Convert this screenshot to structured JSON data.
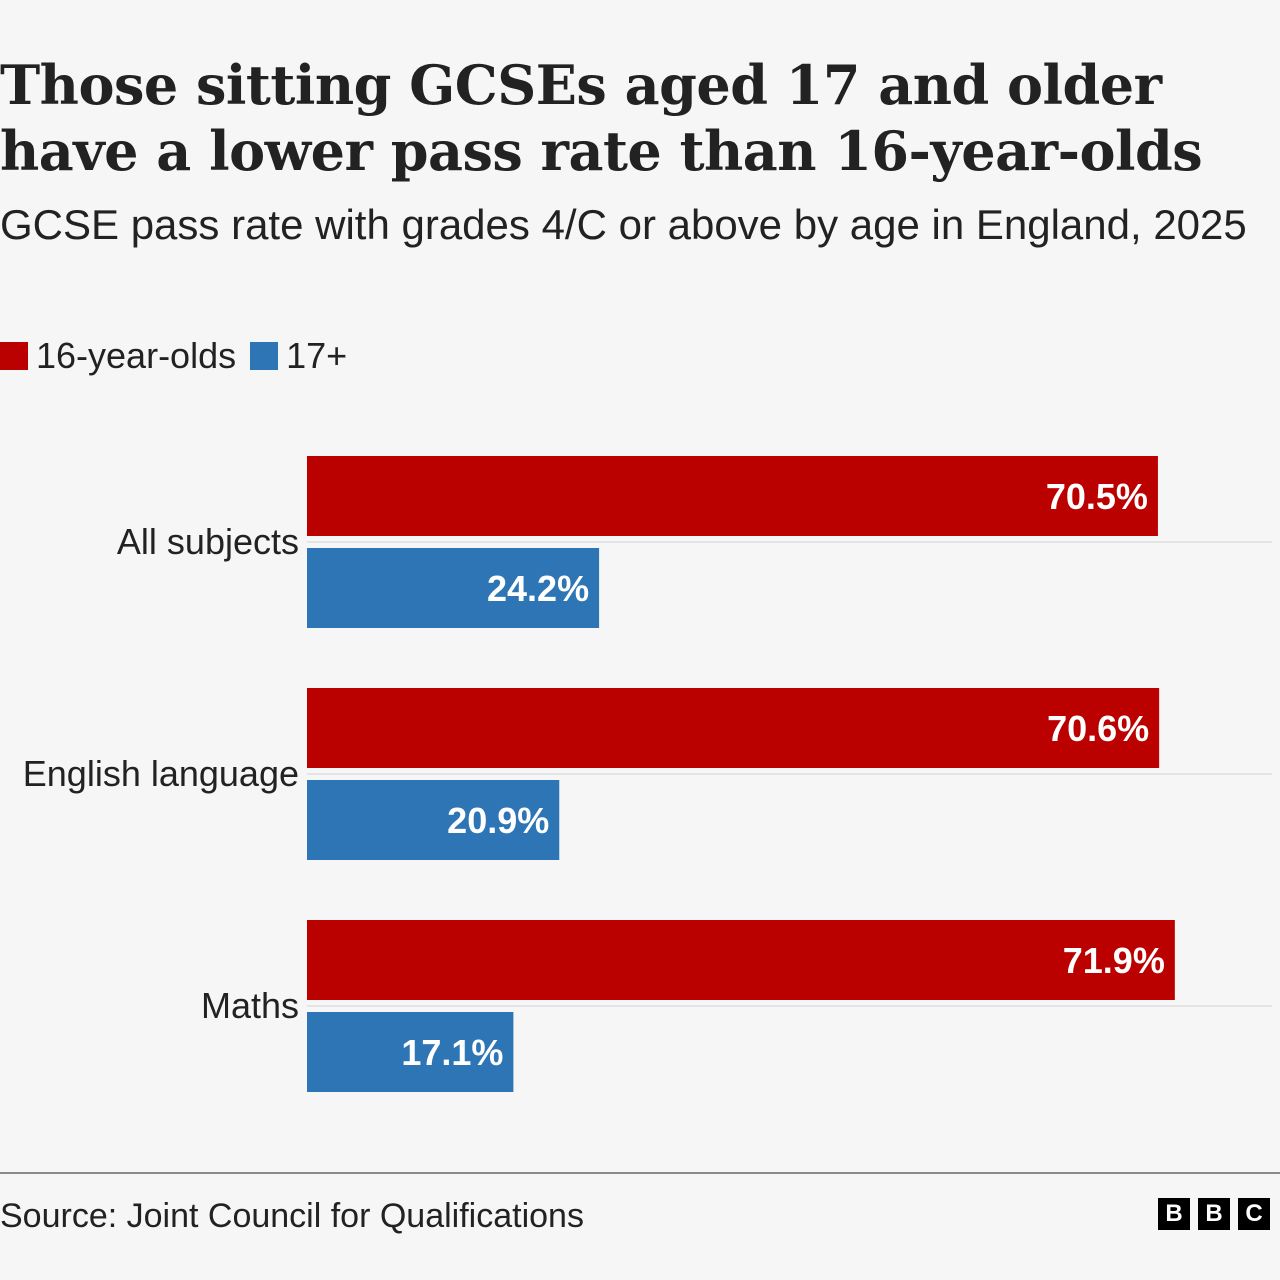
{
  "title": "Those sitting GCSEs aged 17 and older have a lower pass rate than 16-year-olds",
  "subtitle": "GCSE pass rate with grades 4/C or above by age in England, 2025",
  "source": "Source: Joint Council for Qualifications",
  "logo_text": "BBC",
  "chart_data": {
    "type": "bar",
    "orientation": "horizontal",
    "categories": [
      "All subjects",
      "English language",
      "Maths"
    ],
    "series": [
      {
        "name": "16-year-olds",
        "color": "#bb0000",
        "values": [
          70.5,
          70.6,
          71.9
        ],
        "labels": [
          "70.5%",
          "70.6%",
          "71.9%"
        ]
      },
      {
        "name": "17+",
        "color": "#2e75b6",
        "values": [
          24.2,
          20.9,
          17.1
        ],
        "labels": [
          "24.2%",
          "20.9%",
          "17.1%"
        ]
      }
    ],
    "xlim": [
      0,
      80
    ],
    "legend": "top-left",
    "grid": false
  }
}
